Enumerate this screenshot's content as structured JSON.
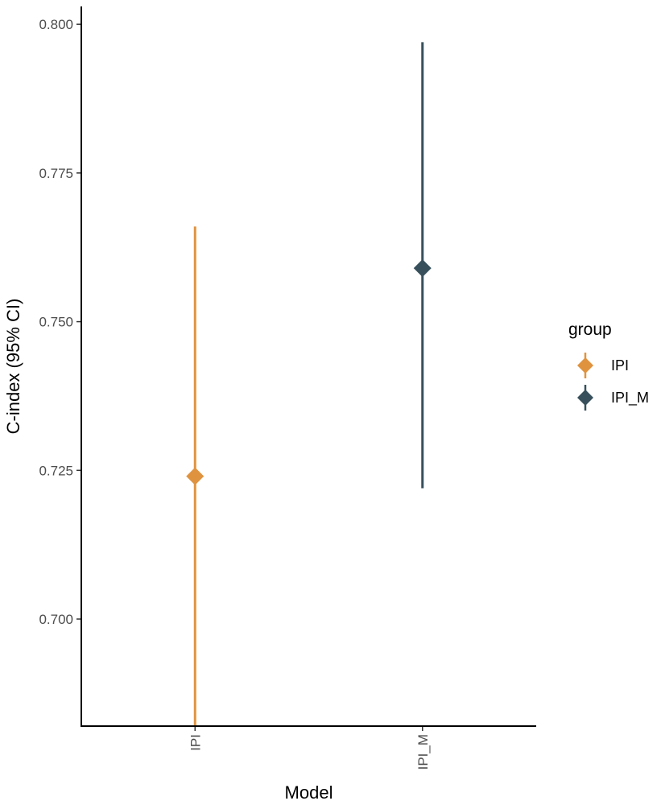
{
  "chart_data": {
    "type": "scatter",
    "xlabel": "Model",
    "ylabel": "C-index (95% CI)",
    "categories": [
      "IPI",
      "IPI_M"
    ],
    "ylim": [
      0.682,
      0.803
    ],
    "yticks": [
      "0.700",
      "0.725",
      "0.750",
      "0.775",
      "0.800"
    ],
    "series": [
      {
        "name": "IPI",
        "category": "IPI",
        "value": 0.724,
        "lower": 0.682,
        "upper": 0.766,
        "color": "#E0933F"
      },
      {
        "name": "IPI_M",
        "category": "IPI_M",
        "value": 0.759,
        "lower": 0.722,
        "upper": 0.797,
        "color": "#37505C"
      }
    ],
    "legend": {
      "title": "group",
      "position": "right"
    },
    "grid": false,
    "x_tick_rotation": "vertical"
  }
}
